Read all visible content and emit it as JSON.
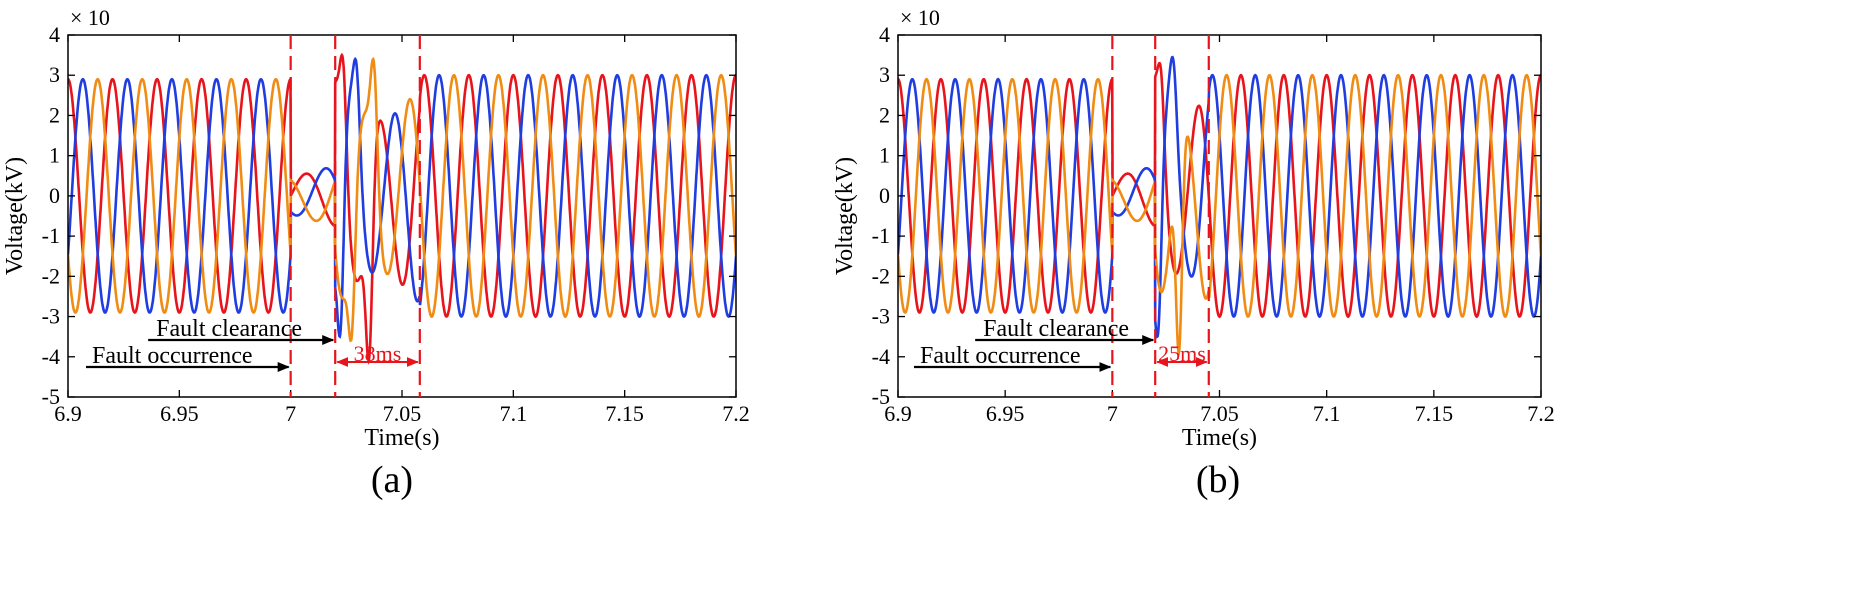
{
  "colors": {
    "phase_a": "#e8141c",
    "phase_b": "#1f3de0",
    "phase_c": "#f08c14",
    "marker": "#e8141c",
    "arrow": "#000000"
  },
  "chart_data": [
    {
      "type": "line",
      "panel_label": "(a)",
      "xlabel": "Time(s)",
      "ylabel": "Voltage(kV)",
      "y_multiplier": "× 10",
      "xlim": [
        6.9,
        7.2
      ],
      "ylim": [
        -5,
        4
      ],
      "xticks": [
        6.9,
        6.95,
        7,
        7.05,
        7.1,
        7.15,
        7.2
      ],
      "xtick_labels": [
        "6.9",
        "6.95",
        "7",
        "7.05",
        "7.1",
        "7.15",
        "7.2"
      ],
      "yticks": [
        -5,
        -4,
        -3,
        -2,
        -1,
        0,
        1,
        2,
        3,
        4
      ],
      "ytick_labels": [
        "-5",
        "-4",
        "-3",
        "-2",
        "-1",
        "0",
        "1",
        "2",
        "3",
        "4"
      ],
      "frequency_hz": 50,
      "pre_fault_amplitude": 2.9,
      "post_fault_amplitude": 3.0,
      "fault_time": 7.0,
      "clearance_time": 7.02,
      "recovery_end_time": 7.058,
      "fault_amplitude": 0.75,
      "transient_peaks": [
        {
          "phase": "phase_a",
          "t": 7.023,
          "v": 3.5
        },
        {
          "phase": "phase_c",
          "t": 7.037,
          "v": 3.4
        },
        {
          "phase": "phase_b",
          "t": 7.029,
          "v": 3.4
        },
        {
          "phase": "phase_b",
          "t": 7.022,
          "v": -3.5
        },
        {
          "phase": "phase_a",
          "t": 7.035,
          "v": -4.1
        },
        {
          "phase": "phase_c",
          "t": 7.027,
          "v": -3.6
        }
      ],
      "annotations": {
        "fault_clearance": "Fault clearance",
        "fault_occurrence": "Fault occurrence",
        "duration": "38ms"
      }
    },
    {
      "type": "line",
      "panel_label": "(b)",
      "xlabel": "Time(s)",
      "ylabel": "Voltage(kV)",
      "y_multiplier": "× 10",
      "xlim": [
        6.9,
        7.2
      ],
      "ylim": [
        -5,
        4
      ],
      "xticks": [
        6.9,
        6.95,
        7,
        7.05,
        7.1,
        7.15,
        7.2
      ],
      "xtick_labels": [
        "6.9",
        "6.95",
        "7",
        "7.05",
        "7.1",
        "7.15",
        "7.2"
      ],
      "yticks": [
        -5,
        -4,
        -3,
        -2,
        -1,
        0,
        1,
        2,
        3,
        4
      ],
      "ytick_labels": [
        "-5",
        "-4",
        "-3",
        "-2",
        "-1",
        "0",
        "1",
        "2",
        "3",
        "4"
      ],
      "frequency_hz": 50,
      "pre_fault_amplitude": 2.9,
      "post_fault_amplitude": 3.0,
      "fault_time": 7.0,
      "clearance_time": 7.02,
      "recovery_end_time": 7.045,
      "fault_amplitude": 0.75,
      "transient_peaks": [
        {
          "phase": "phase_a",
          "t": 7.022,
          "v": 3.3
        },
        {
          "phase": "phase_b",
          "t": 7.028,
          "v": 3.45
        },
        {
          "phase": "phase_b",
          "t": 7.021,
          "v": -3.5
        },
        {
          "phase": "phase_c",
          "t": 7.031,
          "v": -3.9
        }
      ],
      "annotations": {
        "fault_clearance": "Fault clearance",
        "fault_occurrence": "Fault occurrence",
        "duration": "25ms"
      }
    }
  ]
}
